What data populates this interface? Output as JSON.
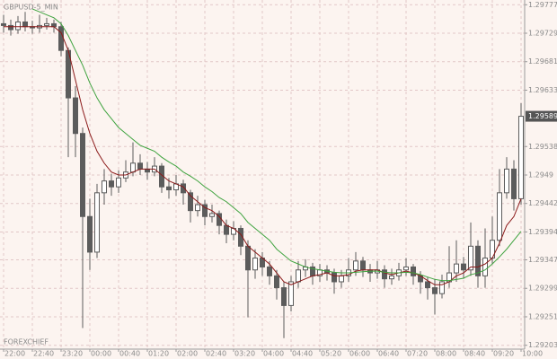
{
  "chart_data": {
    "type": "candlestick",
    "title": "GBPUSD-5_MIN",
    "footer": "FOREXCHIEF",
    "x": [
      0,
      1,
      2,
      3,
      4,
      5,
      6,
      7,
      8,
      9,
      10,
      11,
      12,
      13,
      14,
      15,
      16,
      17,
      18,
      19,
      20,
      21,
      22,
      23,
      24,
      25,
      26,
      27,
      28,
      29,
      30,
      31,
      32,
      33,
      34,
      35,
      36,
      37,
      38,
      39,
      40,
      41,
      42,
      43,
      44,
      45,
      46,
      47,
      48,
      49,
      50,
      51,
      52,
      53,
      54,
      55,
      56,
      57,
      58,
      59,
      60,
      61,
      62,
      63,
      64,
      65,
      66,
      67,
      68,
      69,
      70,
      71,
      72
    ],
    "open": [
      1.29745,
      1.29742,
      1.29735,
      1.29748,
      1.2974,
      1.29738,
      1.29742,
      1.29745,
      1.2974,
      1.297,
      1.2962,
      1.2956,
      1.2942,
      1.2936,
      1.2946,
      1.2948,
      1.2947,
      1.29485,
      1.29495,
      1.2951,
      1.295,
      1.29495,
      1.29505,
      1.2947,
      1.29465,
      1.29475,
      1.2946,
      1.2943,
      1.2944,
      1.2942,
      1.29425,
      1.29405,
      1.2939,
      1.294,
      1.2937,
      1.2933,
      1.2935,
      1.29335,
      1.2932,
      1.293,
      1.2927,
      1.2931,
      1.2933,
      1.29335,
      1.2932,
      1.2933,
      1.29325,
      1.2931,
      1.2932,
      1.2933,
      1.29345,
      1.2933,
      1.29325,
      1.2933,
      1.29315,
      1.2932,
      1.2933,
      1.29335,
      1.2932,
      1.2931,
      1.293,
      1.2929,
      1.2931,
      1.29325,
      1.2934,
      1.2933,
      1.2937,
      1.2932,
      1.2935,
      1.2938,
      1.2946,
      1.295,
      1.2945
    ],
    "high": [
      1.2976,
      1.29752,
      1.29758,
      1.29765,
      1.2975,
      1.2976,
      1.29755,
      1.29752,
      1.29748,
      1.29705,
      1.2964,
      1.2957,
      1.2945,
      1.29475,
      1.295,
      1.29492,
      1.29498,
      1.29515,
      1.29545,
      1.29525,
      1.29512,
      1.2952,
      1.2951,
      1.29485,
      1.2949,
      1.29482,
      1.29465,
      1.29455,
      1.29448,
      1.2944,
      1.2943,
      1.29415,
      1.29412,
      1.29405,
      1.2938,
      1.29365,
      1.2936,
      1.29345,
      1.2933,
      1.2931,
      1.2932,
      1.29345,
      1.29348,
      1.29342,
      1.2934,
      1.29338,
      1.29332,
      1.2933,
      1.2935,
      1.2936,
      1.29352,
      1.2934,
      1.29345,
      1.29338,
      1.29332,
      1.29342,
      1.2935,
      1.2934,
      1.29328,
      1.29318,
      1.29315,
      1.29322,
      1.2937,
      1.2938,
      1.29352,
      1.2941,
      1.2938,
      1.294,
      1.2942,
      1.295,
      1.2952,
      1.29515,
      1.29611
    ],
    "low": [
      1.2973,
      1.29725,
      1.29728,
      1.29732,
      1.29728,
      1.2973,
      1.29735,
      1.2973,
      1.2969,
      1.2952,
      1.2952,
      1.29232,
      1.2933,
      1.2935,
      1.2944,
      1.29455,
      1.2946,
      1.29478,
      1.29488,
      1.2949,
      1.29482,
      1.29488,
      1.2946,
      1.2945,
      1.29455,
      1.2944,
      1.2941,
      1.2942,
      1.29405,
      1.2941,
      1.2939,
      1.29375,
      1.2938,
      1.29355,
      1.2925,
      1.29315,
      1.2932,
      1.29305,
      1.2928,
      1.29215,
      1.2926,
      1.293,
      1.29318,
      1.29305,
      1.2931,
      1.29312,
      1.2929,
      1.293,
      1.2931,
      1.2932,
      1.29318,
      1.2931,
      1.29315,
      1.293,
      1.29305,
      1.29312,
      1.2932,
      1.29305,
      1.2929,
      1.2928,
      1.29255,
      1.29282,
      1.293,
      1.2931,
      1.29315,
      1.2932,
      1.293,
      1.293,
      1.2934,
      1.2937,
      1.2945,
      1.2943,
      1.2944
    ],
    "close": [
      1.29742,
      1.29735,
      1.29748,
      1.2974,
      1.29738,
      1.29742,
      1.29745,
      1.2974,
      1.297,
      1.2962,
      1.2956,
      1.2942,
      1.2936,
      1.2946,
      1.2948,
      1.2947,
      1.29485,
      1.29495,
      1.2951,
      1.295,
      1.29495,
      1.29505,
      1.2947,
      1.29465,
      1.29475,
      1.2946,
      1.2943,
      1.2944,
      1.2942,
      1.29425,
      1.29405,
      1.2939,
      1.294,
      1.2937,
      1.2933,
      1.2935,
      1.29335,
      1.2932,
      1.293,
      1.2927,
      1.2931,
      1.2933,
      1.29335,
      1.2932,
      1.2933,
      1.29325,
      1.2931,
      1.2932,
      1.2933,
      1.29345,
      1.2933,
      1.29325,
      1.2933,
      1.29315,
      1.2932,
      1.2933,
      1.29335,
      1.2932,
      1.2931,
      1.293,
      1.2929,
      1.2931,
      1.29325,
      1.2934,
      1.2933,
      1.2937,
      1.2932,
      1.2935,
      1.2938,
      1.2946,
      1.295,
      1.2945,
      1.29589
    ],
    "candle_color": "#5c5c5c",
    "lines": [
      {
        "color": "#8b1a1a",
        "values": [
          1.2974,
          1.2974,
          1.2974,
          1.2974,
          1.2974,
          1.2974,
          1.2974,
          1.2974,
          1.2973,
          1.297,
          1.2965,
          1.296,
          1.2956,
          1.2953,
          1.2951,
          1.29495,
          1.2949,
          1.2949,
          1.29495,
          1.295,
          1.295,
          1.295,
          1.2949,
          1.2948,
          1.29475,
          1.2947,
          1.29455,
          1.29445,
          1.29435,
          1.2943,
          1.2942,
          1.29405,
          1.294,
          1.2939,
          1.2937,
          1.2936,
          1.2935,
          1.2934,
          1.29325,
          1.2931,
          1.29305,
          1.2931,
          1.29315,
          1.2932,
          1.29322,
          1.29325,
          1.2932,
          1.2932,
          1.29322,
          1.29328,
          1.2933,
          1.2933,
          1.2933,
          1.29325,
          1.29322,
          1.29325,
          1.29328,
          1.29325,
          1.2932,
          1.29312,
          1.29305,
          1.29305,
          1.2931,
          1.2932,
          1.29325,
          1.29335,
          1.29335,
          1.2934,
          1.2935,
          1.29375,
          1.29405,
          1.2942,
          1.2945
        ]
      },
      {
        "color": "#3fa33f",
        "values": [
          null,
          null,
          null,
          null,
          1.2977,
          1.29765,
          1.2976,
          1.29755,
          1.29745,
          1.29725,
          1.297,
          1.29675,
          1.29645,
          1.2962,
          1.296,
          1.29585,
          1.2957,
          1.2956,
          1.2955,
          1.2954,
          1.29535,
          1.2953,
          1.2952,
          1.29512,
          1.29505,
          1.29495,
          1.29488,
          1.2948,
          1.2947,
          1.29462,
          1.29452,
          1.29445,
          1.29435,
          1.29425,
          1.2941,
          1.294,
          1.2939,
          1.2938,
          1.29365,
          1.29355,
          1.29345,
          1.2934,
          1.29335,
          1.29332,
          1.2933,
          1.29328,
          1.29326,
          1.29325,
          1.29325,
          1.29326,
          1.29327,
          1.29328,
          1.29328,
          1.29326,
          1.29325,
          1.29325,
          1.29326,
          1.29325,
          1.29322,
          1.29318,
          1.29314,
          1.29312,
          1.29312,
          1.29314,
          1.29316,
          1.29322,
          1.29325,
          1.2933,
          1.2934,
          1.29352,
          1.29365,
          1.2938,
          1.29395
        ]
      }
    ],
    "xlim": [
      -0.5,
      72.5
    ],
    "ylim": [
      1.29198,
      1.29785
    ],
    "yticks": [
      1.29777,
      1.29729,
      1.29681,
      1.29633,
      1.29538,
      1.2949,
      1.29442,
      1.29394,
      1.29347,
      1.29299,
      1.29251,
      1.29203
    ],
    "xticks": [
      {
        "value": 0,
        "label": "22:00"
      },
      {
        "value": 4,
        "label": "22:40"
      },
      {
        "value": 8,
        "label": "23:20"
      },
      {
        "value": 12,
        "label": "00:00"
      },
      {
        "value": 16,
        "label": "00:40"
      },
      {
        "value": 20,
        "label": "01:20"
      },
      {
        "value": 24,
        "label": "02:00"
      },
      {
        "value": 28,
        "label": "02:40"
      },
      {
        "value": 32,
        "label": "03:20"
      },
      {
        "value": 36,
        "label": "04:00"
      },
      {
        "value": 40,
        "label": "04:40"
      },
      {
        "value": 44,
        "label": "05:20"
      },
      {
        "value": 48,
        "label": "06:00"
      },
      {
        "value": 52,
        "label": "06:40"
      },
      {
        "value": 56,
        "label": "07:20"
      },
      {
        "value": 60,
        "label": "08:00"
      },
      {
        "value": 64,
        "label": "08:40"
      },
      {
        "value": 68,
        "label": "09:20"
      },
      {
        "value": 72,
        "label": "10:00"
      }
    ],
    "grid": true
  }
}
